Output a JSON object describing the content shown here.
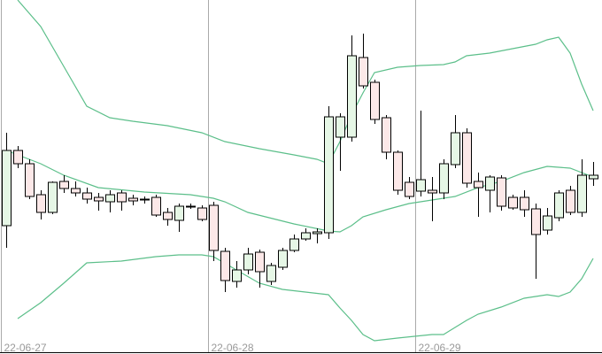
{
  "chart_data": {
    "type": "candlestick",
    "ylim": [
      0,
      400
    ],
    "xticks": [
      {
        "value": 0,
        "label": "22-06-27"
      },
      {
        "value": 18,
        "label": "22-06-28"
      },
      {
        "value": 36,
        "label": "22-06-29"
      }
    ],
    "up_color": "#e6f7e6",
    "down_color": "#fce8e8",
    "edge_color": "#000000",
    "open": [
      145,
      230,
      215,
      180,
      160,
      195,
      187,
      182,
      177,
      172,
      182,
      176,
      175,
      177,
      160,
      151,
      167,
      165,
      168,
      116,
      82,
      95,
      115,
      82,
      98,
      117,
      130,
      136,
      137,
      245,
      245,
      335,
      307,
      267,
      228,
      194,
      184,
      185,
      182,
      214,
      250,
      195,
      185,
      199,
      177,
      177,
      164,
      140,
      154,
      185,
      160,
      198
    ],
    "high": [
      250,
      235,
      220,
      185,
      195,
      202,
      195,
      188,
      182,
      185,
      185,
      180,
      178,
      180,
      165,
      170,
      170,
      168,
      172,
      120,
      105,
      120,
      118,
      103,
      120,
      135,
      142,
      142,
      280,
      272,
      360,
      362,
      310,
      270,
      230,
      200,
      275,
      200,
      220,
      270,
      255,
      205,
      202,
      202,
      180,
      185,
      170,
      165,
      185,
      190,
      220,
      217
    ],
    "low": [
      120,
      210,
      175,
      152,
      158,
      182,
      178,
      170,
      162,
      160,
      162,
      168,
      170,
      155,
      145,
      138,
      164,
      150,
      105,
      70,
      75,
      90,
      75,
      78,
      95,
      115,
      128,
      125,
      130,
      207,
      240,
      300,
      260,
      220,
      180,
      175,
      178,
      150,
      175,
      210,
      188,
      155,
      160,
      162,
      163,
      155,
      85,
      135,
      150,
      157,
      155,
      190
    ],
    "close": [
      230,
      215,
      178,
      160,
      194,
      187,
      182,
      175,
      173,
      180,
      172,
      173,
      175,
      157,
      152,
      167,
      167,
      152,
      117,
      83,
      95,
      113,
      93,
      100,
      117,
      130,
      137,
      138,
      268,
      268,
      337,
      303,
      265,
      228,
      185,
      178,
      197,
      182,
      215,
      250,
      193,
      188,
      200,
      167,
      165,
      163,
      135,
      156,
      182,
      160,
      202,
      202
    ],
    "bands": [
      {
        "color": "#5cbf8a",
        "x": [
          1,
          3,
          5,
          7,
          9,
          11,
          14,
          17,
          19,
          22,
          25,
          27,
          28,
          29,
          30,
          31,
          32,
          34,
          36,
          38,
          39,
          40,
          42,
          44,
          46,
          47,
          48,
          49,
          50,
          51
        ],
        "values": [
          400,
          370,
          325,
          280,
          267,
          263,
          258,
          250,
          240,
          232,
          225,
          220,
          215,
          240,
          270,
          295,
          318,
          324,
          326,
          327,
          330,
          337,
          340,
          345,
          350,
          355,
          358,
          340,
          305,
          275
        ]
      },
      {
        "color": "#5cbf8a",
        "x": [
          0,
          3,
          5,
          8,
          12,
          16,
          18,
          19,
          21,
          25,
          28,
          29,
          30,
          31,
          33,
          35,
          37,
          39,
          41,
          43,
          45,
          47,
          49,
          51
        ],
        "values": [
          230,
          215,
          202,
          188,
          183,
          180,
          176,
          172,
          160,
          147,
          139,
          138,
          145,
          155,
          163,
          170,
          174,
          178,
          188,
          195,
          205,
          212,
          210,
          200
        ]
      },
      {
        "color": "#5cbf8a",
        "x": [
          1,
          3,
          5,
          7,
          10,
          13,
          15,
          17,
          18,
          20,
          22,
          24,
          26,
          28,
          29,
          30,
          31,
          32,
          34,
          37,
          38,
          39,
          40,
          41,
          43,
          45,
          47,
          48,
          49,
          50,
          51
        ],
        "values": [
          40,
          58,
          80,
          103,
          105,
          110,
          112,
          112,
          110,
          95,
          80,
          73,
          70,
          67,
          52,
          38,
          22,
          15,
          18,
          22,
          22,
          30,
          38,
          45,
          53,
          63,
          67,
          65,
          70,
          85,
          108
        ]
      }
    ]
  }
}
